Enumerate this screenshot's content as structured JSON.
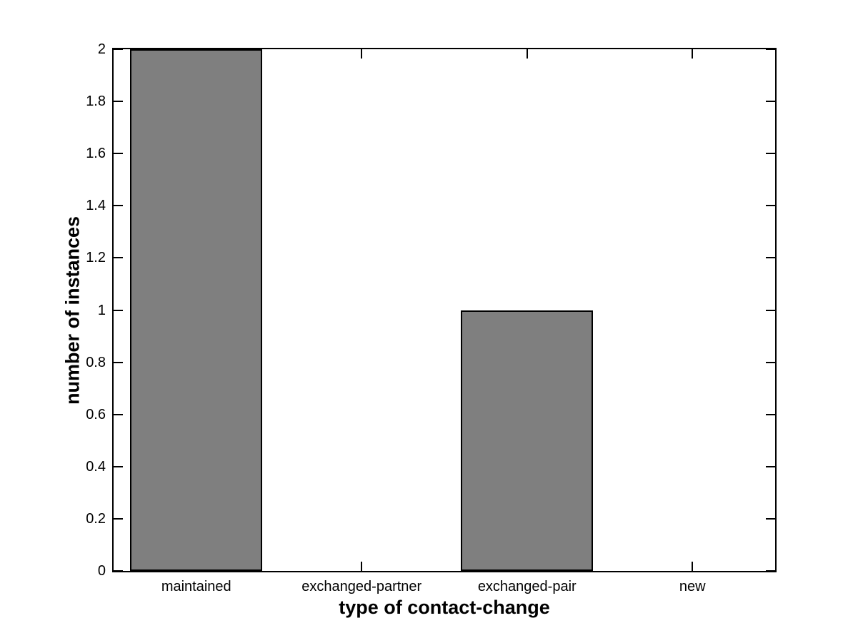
{
  "chart_data": {
    "type": "bar",
    "title": "",
    "xlabel": "type of contact-change",
    "ylabel": "number of instances",
    "categories": [
      "maintained",
      "exchanged-partner",
      "exchanged-pair",
      "new"
    ],
    "values": [
      2,
      0,
      1,
      0
    ],
    "ylim": [
      0,
      2
    ],
    "ytick_step": 0.2,
    "ytick_labels": [
      "0",
      "0.2",
      "0.4",
      "0.6",
      "0.8",
      "1",
      "1.2",
      "1.4",
      "1.6",
      "1.8",
      "2"
    ],
    "bar_width_fraction": 0.8,
    "bar_color": "#7f7f7f",
    "bar_edge_color": "#000000",
    "axis_color": "#000000",
    "text_color": "#000000",
    "background": "#ffffff",
    "grid": false,
    "legend": "none",
    "tick_direction": "in"
  }
}
